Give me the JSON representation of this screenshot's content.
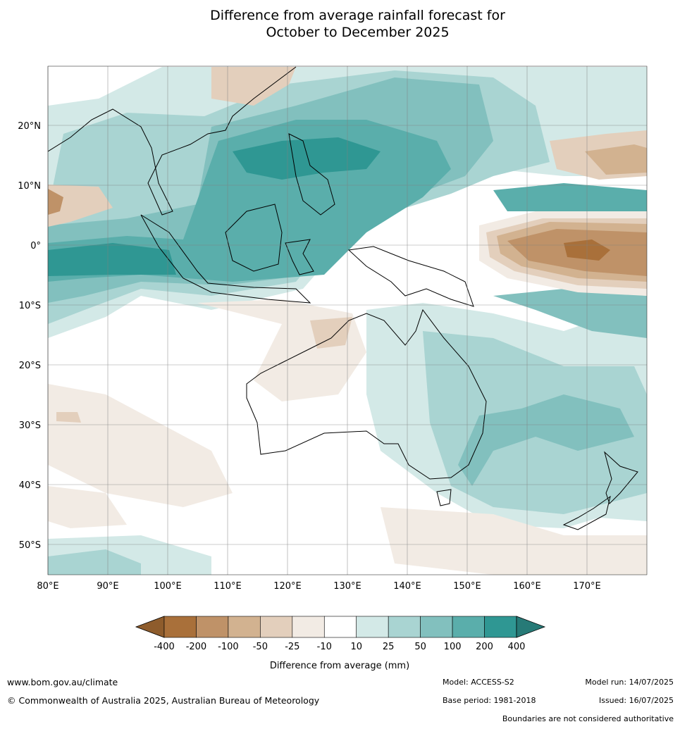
{
  "title": {
    "line1": "Difference from average rainfall forecast for",
    "line2": "October to December 2025"
  },
  "axes": {
    "lat_labels": [
      "20°N",
      "10°N",
      "0°",
      "10°S",
      "20°S",
      "30°S",
      "40°S",
      "50°S"
    ],
    "lon_labels": [
      "80°E",
      "90°E",
      "100°E",
      "110°E",
      "120°E",
      "130°E",
      "140°E",
      "150°E",
      "160°E",
      "170°E"
    ]
  },
  "legend": {
    "title": "Difference from average (mm)",
    "ticks": [
      "-400",
      "-200",
      "-100",
      "-50",
      "-25",
      "-10",
      "10",
      "25",
      "50",
      "100",
      "200",
      "400"
    ],
    "colors": [
      "#a9703a",
      "#bf9268",
      "#d2b290",
      "#e3cfbc",
      "#f2ebe4",
      "#ffffff",
      "#d3e9e7",
      "#a9d4d2",
      "#82c0be",
      "#5aaeab",
      "#2f9793"
    ],
    "under_color": "#8e5c2c",
    "over_color": "#277a77"
  },
  "footer": {
    "website": "www.bom.gov.au/climate",
    "copyright": "© Commonwealth of Australia 2025, Australian Bureau of Meteorology",
    "model": "Model: ACCESS-S2",
    "base_period": "Base period: 1981-2018",
    "model_run": "Model run: 14/07/2025",
    "issued": "Issued: 16/07/2025",
    "disclaimer": "Boundaries are not considered authoritative"
  }
}
